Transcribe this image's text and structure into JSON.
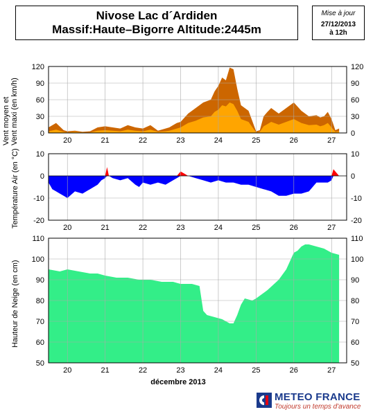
{
  "header": {
    "title_line1": "Nivose Lac d´Ardiden",
    "title_line2": "Massif:Haute–Bigorre Altitude:2445m",
    "update_label": "Mise à jour",
    "update_date": "27/12/2013",
    "update_time": "à 12h"
  },
  "x_axis": {
    "days": [
      "20",
      "21",
      "22",
      "23",
      "24",
      "25",
      "26",
      "27"
    ],
    "month_label": "décembre 2013"
  },
  "footer": {
    "brand": "METEO FRANCE",
    "tagline": "Toujours un temps d'avance"
  },
  "colors": {
    "wind_max": "#cc6600",
    "wind_mean": "#ffa500",
    "temp_pos": "#ff0000",
    "temp_neg": "#0000ff",
    "snow": "#33ee88"
  },
  "chart_data": [
    {
      "type": "area",
      "ylabel": "Vent moyen et Vent maxi (en km/h)",
      "ylabel_lines": [
        "Vent moyen et",
        "Vent maxi (en km/h)"
      ],
      "ylim": [
        0,
        120
      ],
      "yticks": [
        0,
        30,
        60,
        90,
        120
      ],
      "x": [
        19.5,
        19.7,
        19.9,
        20.0,
        20.2,
        20.4,
        20.6,
        20.8,
        21.0,
        21.2,
        21.4,
        21.6,
        21.8,
        22.0,
        22.2,
        22.4,
        22.6,
        22.7,
        22.8,
        22.9,
        23.0,
        23.2,
        23.4,
        23.6,
        23.8,
        23.9,
        24.0,
        24.1,
        24.2,
        24.3,
        24.4,
        24.5,
        24.6,
        24.8,
        25.0,
        25.1,
        25.2,
        25.3,
        25.4,
        25.6,
        25.8,
        26.0,
        26.2,
        26.4,
        26.6,
        26.7,
        26.8,
        26.9,
        27.0,
        27.1,
        27.2
      ],
      "series": [
        {
          "name": "Vent maxi",
          "values": [
            10,
            18,
            5,
            3,
            4,
            2,
            3,
            10,
            12,
            10,
            8,
            14,
            10,
            8,
            14,
            4,
            8,
            10,
            14,
            18,
            20,
            35,
            45,
            55,
            60,
            75,
            85,
            100,
            95,
            118,
            115,
            80,
            50,
            40,
            3,
            5,
            30,
            38,
            45,
            35,
            45,
            55,
            40,
            30,
            32,
            28,
            30,
            38,
            25,
            5,
            8
          ]
        },
        {
          "name": "Vent moyen",
          "values": [
            3,
            6,
            2,
            1,
            2,
            1,
            1,
            4,
            5,
            4,
            3,
            6,
            4,
            3,
            6,
            2,
            3,
            4,
            6,
            8,
            10,
            18,
            22,
            28,
            30,
            38,
            42,
            50,
            48,
            55,
            52,
            40,
            25,
            20,
            1,
            2,
            12,
            16,
            20,
            15,
            20,
            25,
            18,
            14,
            15,
            12,
            14,
            18,
            10,
            2,
            3
          ]
        }
      ]
    },
    {
      "type": "area",
      "ylabel": "Température Air (en °C)",
      "ylim": [
        -20,
        10
      ],
      "yticks": [
        -20,
        -10,
        0,
        10
      ],
      "x": [
        19.5,
        19.6,
        19.7,
        19.8,
        19.9,
        20.0,
        20.2,
        20.4,
        20.6,
        20.8,
        20.9,
        21.0,
        21.05,
        21.1,
        21.2,
        21.4,
        21.6,
        21.8,
        21.9,
        22.0,
        22.2,
        22.4,
        22.6,
        22.8,
        22.9,
        23.0,
        23.1,
        23.2,
        23.4,
        23.6,
        23.8,
        24.0,
        24.2,
        24.4,
        24.6,
        24.8,
        25.0,
        25.2,
        25.4,
        25.6,
        25.8,
        26.0,
        26.2,
        26.4,
        26.5,
        26.6,
        26.8,
        26.9,
        27.0,
        27.05,
        27.1,
        27.2
      ],
      "values": [
        -3,
        -6,
        -7,
        -8,
        -9,
        -10,
        -7,
        -8,
        -6,
        -4,
        -2,
        -1,
        4,
        0,
        -1,
        -2,
        -1,
        -4,
        -5,
        -3,
        -4,
        -3,
        -4,
        -2,
        -1,
        2,
        1,
        0,
        -1,
        -2,
        -3,
        -2,
        -3,
        -3,
        -4,
        -4,
        -5,
        -6,
        -7,
        -9,
        -9,
        -8,
        -8,
        -7,
        -5,
        -3,
        -3,
        -3,
        -2,
        3,
        2,
        0
      ]
    },
    {
      "type": "area",
      "ylabel": "Hauteur de Neige (en cm)",
      "ylim": [
        50,
        110
      ],
      "yticks": [
        50,
        60,
        70,
        80,
        90,
        100,
        110
      ],
      "x": [
        19.5,
        19.8,
        20.0,
        20.3,
        20.6,
        20.8,
        21.0,
        21.3,
        21.6,
        21.9,
        22.2,
        22.5,
        22.8,
        23.0,
        23.3,
        23.5,
        23.6,
        23.7,
        23.9,
        24.1,
        24.3,
        24.4,
        24.5,
        24.6,
        24.7,
        24.9,
        25.0,
        25.3,
        25.6,
        25.8,
        26.0,
        26.1,
        26.2,
        26.3,
        26.4,
        26.6,
        26.8,
        27.0,
        27.2
      ],
      "values": [
        95,
        94,
        95,
        94,
        93,
        93,
        92,
        91,
        91,
        90,
        90,
        89,
        89,
        88,
        88,
        87,
        75,
        73,
        72,
        71,
        69,
        69,
        73,
        78,
        81,
        80,
        81,
        85,
        90,
        95,
        103,
        104,
        106,
        107,
        107,
        106,
        105,
        103,
        102
      ]
    }
  ]
}
